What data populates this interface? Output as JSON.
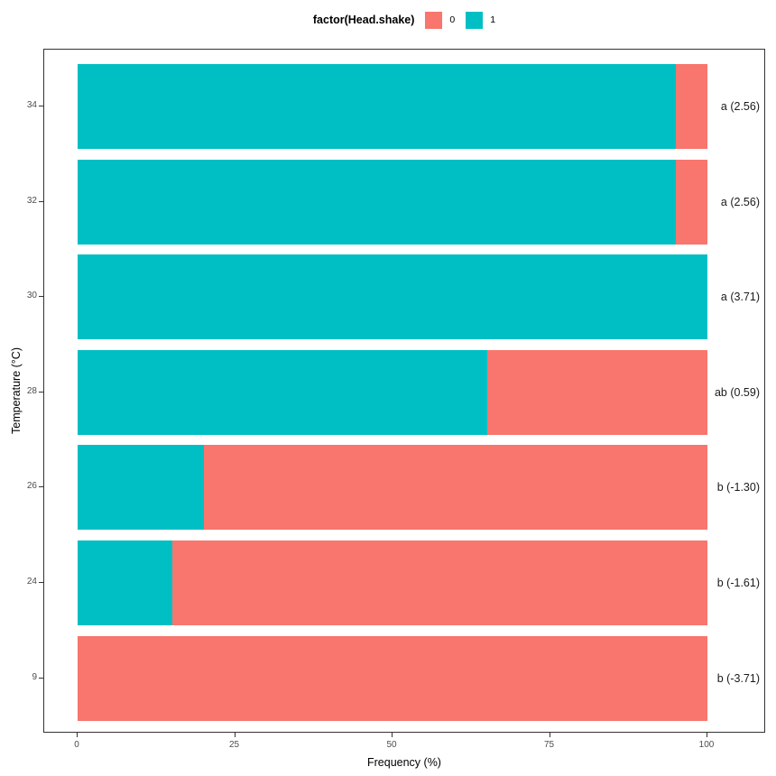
{
  "legend": {
    "title": "factor(Head.shake)",
    "items": [
      {
        "label": "0",
        "color": "#F8766D"
      },
      {
        "label": "1",
        "color": "#00BFC4"
      }
    ]
  },
  "chart_data": {
    "type": "bar",
    "orientation": "horizontal",
    "stacked": true,
    "title": "",
    "xlabel": "Frequency (%)",
    "ylabel": "Temperature (°C)",
    "xlim": [
      0,
      100
    ],
    "x_ticks": [
      0,
      25,
      50,
      75,
      100
    ],
    "grid": false,
    "legend_position": "top",
    "categories": [
      "34",
      "32",
      "30",
      "28",
      "26",
      "24",
      "9"
    ],
    "series": [
      {
        "name": "1",
        "color": "#00BFC4",
        "values": [
          95,
          95,
          100,
          65,
          20,
          15,
          0
        ]
      },
      {
        "name": "0",
        "color": "#F8766D",
        "values": [
          5,
          5,
          0,
          35,
          80,
          85,
          100
        ]
      }
    ],
    "annotations": [
      "a (2.56)",
      "a (2.56)",
      "a (3.71)",
      "ab (0.59)",
      "b (-1.30)",
      "b (-1.61)",
      "b (-3.71)"
    ]
  }
}
